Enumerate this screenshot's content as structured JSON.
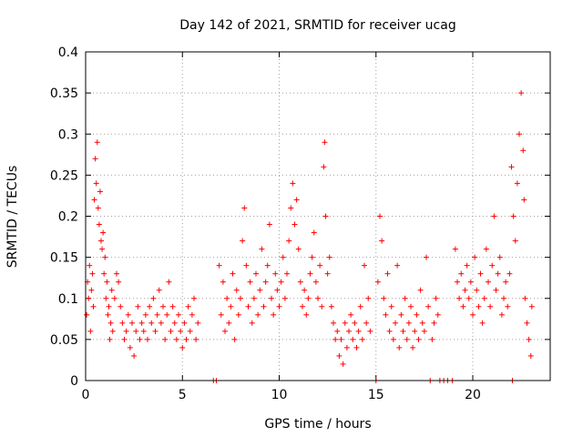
{
  "chart_data": {
    "type": "scatter",
    "title": "Day 142 of 2021, SRMTID for receiver ucag",
    "xlabel": "GPS time / hours",
    "ylabel": "SRMTID / TECUs",
    "xlim": [
      0,
      24
    ],
    "ylim": [
      0,
      0.4
    ],
    "xticks": [
      0,
      5,
      10,
      15,
      20
    ],
    "xtick_labels": [
      "0",
      "5",
      "10",
      "15",
      "20"
    ],
    "yticks": [
      0,
      0.05,
      0.1,
      0.15,
      0.2,
      0.25,
      0.3,
      0.35,
      0.4
    ],
    "ytick_labels": [
      "0",
      "0.05",
      "0.1",
      "0.15",
      "0.2",
      "0.25",
      "0.3",
      "0.35",
      "0.4"
    ],
    "grid": true,
    "marker": "+",
    "color": "#ff0000",
    "series": [
      {
        "name": "SRMTID",
        "points": [
          [
            0.05,
            0.08
          ],
          [
            0.1,
            0.12
          ],
          [
            0.15,
            0.1
          ],
          [
            0.2,
            0.14
          ],
          [
            0.25,
            0.06
          ],
          [
            0.3,
            0.11
          ],
          [
            0.35,
            0.13
          ],
          [
            0.4,
            0.09
          ],
          [
            0.45,
            0.22
          ],
          [
            0.5,
            0.27
          ],
          [
            0.55,
            0.24
          ],
          [
            0.6,
            0.29
          ],
          [
            0.65,
            0.21
          ],
          [
            0.7,
            0.19
          ],
          [
            0.75,
            0.23
          ],
          [
            0.8,
            0.17
          ],
          [
            0.85,
            0.16
          ],
          [
            0.9,
            0.18
          ],
          [
            0.95,
            0.13
          ],
          [
            1.0,
            0.15
          ],
          [
            1.05,
            0.1
          ],
          [
            1.1,
            0.12
          ],
          [
            1.15,
            0.08
          ],
          [
            1.2,
            0.09
          ],
          [
            1.25,
            0.05
          ],
          [
            1.3,
            0.07
          ],
          [
            1.35,
            0.11
          ],
          [
            1.4,
            0.06
          ],
          [
            1.5,
            0.1
          ],
          [
            1.6,
            0.13
          ],
          [
            1.7,
            0.12
          ],
          [
            1.8,
            0.09
          ],
          [
            1.9,
            0.07
          ],
          [
            2.0,
            0.05
          ],
          [
            2.1,
            0.06
          ],
          [
            2.2,
            0.08
          ],
          [
            2.3,
            0.04
          ],
          [
            2.4,
            0.07
          ],
          [
            2.5,
            0.03
          ],
          [
            2.6,
            0.06
          ],
          [
            2.7,
            0.09
          ],
          [
            2.8,
            0.05
          ],
          [
            2.9,
            0.07
          ],
          [
            3.0,
            0.06
          ],
          [
            3.1,
            0.08
          ],
          [
            3.2,
            0.05
          ],
          [
            3.3,
            0.09
          ],
          [
            3.4,
            0.07
          ],
          [
            3.5,
            0.1
          ],
          [
            3.6,
            0.06
          ],
          [
            3.7,
            0.08
          ],
          [
            3.8,
            0.11
          ],
          [
            3.9,
            0.07
          ],
          [
            4.0,
            0.09
          ],
          [
            4.1,
            0.05
          ],
          [
            4.2,
            0.08
          ],
          [
            4.3,
            0.12
          ],
          [
            4.4,
            0.06
          ],
          [
            4.5,
            0.09
          ],
          [
            4.6,
            0.07
          ],
          [
            4.7,
            0.05
          ],
          [
            4.8,
            0.08
          ],
          [
            4.9,
            0.06
          ],
          [
            5.0,
            0.04
          ],
          [
            5.1,
            0.07
          ],
          [
            5.2,
            0.05
          ],
          [
            5.3,
            0.09
          ],
          [
            5.4,
            0.06
          ],
          [
            5.5,
            0.08
          ],
          [
            5.6,
            0.1
          ],
          [
            5.7,
            0.05
          ],
          [
            5.8,
            0.07
          ],
          [
            6.6,
            0.0
          ],
          [
            6.75,
            0.0
          ],
          [
            6.9,
            0.14
          ],
          [
            7.0,
            0.08
          ],
          [
            7.1,
            0.12
          ],
          [
            7.2,
            0.06
          ],
          [
            7.3,
            0.1
          ],
          [
            7.4,
            0.07
          ],
          [
            7.5,
            0.09
          ],
          [
            7.6,
            0.13
          ],
          [
            7.7,
            0.05
          ],
          [
            7.8,
            0.11
          ],
          [
            7.9,
            0.08
          ],
          [
            8.0,
            0.1
          ],
          [
            8.1,
            0.17
          ],
          [
            8.2,
            0.21
          ],
          [
            8.3,
            0.14
          ],
          [
            8.4,
            0.09
          ],
          [
            8.5,
            0.12
          ],
          [
            8.6,
            0.07
          ],
          [
            8.7,
            0.1
          ],
          [
            8.8,
            0.13
          ],
          [
            8.9,
            0.08
          ],
          [
            9.0,
            0.11
          ],
          [
            9.1,
            0.16
          ],
          [
            9.2,
            0.09
          ],
          [
            9.3,
            0.12
          ],
          [
            9.4,
            0.14
          ],
          [
            9.5,
            0.19
          ],
          [
            9.6,
            0.1
          ],
          [
            9.7,
            0.08
          ],
          [
            9.8,
            0.13
          ],
          [
            9.9,
            0.11
          ],
          [
            10.0,
            0.09
          ],
          [
            10.1,
            0.12
          ],
          [
            10.2,
            0.15
          ],
          [
            10.3,
            0.1
          ],
          [
            10.4,
            0.13
          ],
          [
            10.5,
            0.17
          ],
          [
            10.6,
            0.21
          ],
          [
            10.7,
            0.24
          ],
          [
            10.8,
            0.19
          ],
          [
            10.9,
            0.22
          ],
          [
            11.0,
            0.16
          ],
          [
            11.1,
            0.12
          ],
          [
            11.2,
            0.09
          ],
          [
            11.3,
            0.11
          ],
          [
            11.4,
            0.08
          ],
          [
            11.5,
            0.1
          ],
          [
            11.6,
            0.13
          ],
          [
            11.7,
            0.15
          ],
          [
            11.8,
            0.18
          ],
          [
            11.9,
            0.12
          ],
          [
            12.0,
            0.1
          ],
          [
            12.1,
            0.14
          ],
          [
            12.2,
            0.09
          ],
          [
            12.3,
            0.26
          ],
          [
            12.35,
            0.29
          ],
          [
            12.4,
            0.2
          ],
          [
            12.5,
            0.13
          ],
          [
            12.6,
            0.15
          ],
          [
            12.7,
            0.09
          ],
          [
            12.8,
            0.07
          ],
          [
            12.9,
            0.05
          ],
          [
            13.0,
            0.06
          ],
          [
            13.1,
            0.03
          ],
          [
            13.2,
            0.05
          ],
          [
            13.3,
            0.02
          ],
          [
            13.4,
            0.07
          ],
          [
            13.5,
            0.04
          ],
          [
            13.6,
            0.06
          ],
          [
            13.7,
            0.08
          ],
          [
            13.8,
            0.05
          ],
          [
            13.9,
            0.07
          ],
          [
            14.0,
            0.04
          ],
          [
            14.1,
            0.06
          ],
          [
            14.2,
            0.09
          ],
          [
            14.3,
            0.05
          ],
          [
            14.4,
            0.14
          ],
          [
            14.5,
            0.07
          ],
          [
            14.6,
            0.1
          ],
          [
            14.7,
            0.06
          ],
          [
            15.0,
            0.0
          ],
          [
            15.1,
            0.12
          ],
          [
            15.2,
            0.2
          ],
          [
            15.3,
            0.17
          ],
          [
            15.4,
            0.1
          ],
          [
            15.5,
            0.08
          ],
          [
            15.6,
            0.13
          ],
          [
            15.7,
            0.06
          ],
          [
            15.8,
            0.09
          ],
          [
            15.9,
            0.05
          ],
          [
            16.0,
            0.07
          ],
          [
            16.1,
            0.14
          ],
          [
            16.2,
            0.04
          ],
          [
            16.3,
            0.08
          ],
          [
            16.4,
            0.06
          ],
          [
            16.5,
            0.1
          ],
          [
            16.6,
            0.05
          ],
          [
            16.7,
            0.07
          ],
          [
            16.8,
            0.09
          ],
          [
            16.9,
            0.04
          ],
          [
            17.0,
            0.06
          ],
          [
            17.1,
            0.08
          ],
          [
            17.2,
            0.05
          ],
          [
            17.3,
            0.11
          ],
          [
            17.4,
            0.07
          ],
          [
            17.5,
            0.06
          ],
          [
            17.6,
            0.15
          ],
          [
            17.7,
            0.09
          ],
          [
            17.8,
            0.0
          ],
          [
            17.9,
            0.05
          ],
          [
            18.0,
            0.07
          ],
          [
            18.1,
            0.1
          ],
          [
            18.2,
            0.08
          ],
          [
            18.3,
            0.0
          ],
          [
            18.5,
            0.0
          ],
          [
            18.7,
            0.0
          ],
          [
            18.95,
            0.0
          ],
          [
            19.1,
            0.16
          ],
          [
            19.2,
            0.12
          ],
          [
            19.3,
            0.1
          ],
          [
            19.4,
            0.13
          ],
          [
            19.5,
            0.09
          ],
          [
            19.6,
            0.11
          ],
          [
            19.7,
            0.14
          ],
          [
            19.8,
            0.1
          ],
          [
            19.9,
            0.12
          ],
          [
            20.0,
            0.08
          ],
          [
            20.1,
            0.15
          ],
          [
            20.2,
            0.11
          ],
          [
            20.3,
            0.09
          ],
          [
            20.4,
            0.13
          ],
          [
            20.5,
            0.07
          ],
          [
            20.6,
            0.1
          ],
          [
            20.7,
            0.16
          ],
          [
            20.8,
            0.12
          ],
          [
            20.9,
            0.09
          ],
          [
            21.0,
            0.14
          ],
          [
            21.1,
            0.2
          ],
          [
            21.2,
            0.11
          ],
          [
            21.3,
            0.13
          ],
          [
            21.4,
            0.15
          ],
          [
            21.5,
            0.08
          ],
          [
            21.6,
            0.1
          ],
          [
            21.7,
            0.12
          ],
          [
            21.8,
            0.09
          ],
          [
            21.9,
            0.13
          ],
          [
            22.0,
            0.26
          ],
          [
            22.05,
            0.0
          ],
          [
            22.1,
            0.2
          ],
          [
            22.2,
            0.17
          ],
          [
            22.3,
            0.24
          ],
          [
            22.4,
            0.3
          ],
          [
            22.5,
            0.35
          ],
          [
            22.6,
            0.28
          ],
          [
            22.65,
            0.22
          ],
          [
            22.7,
            0.1
          ],
          [
            22.8,
            0.07
          ],
          [
            22.9,
            0.05
          ],
          [
            23.0,
            0.03
          ],
          [
            23.05,
            0.09
          ]
        ]
      }
    ]
  }
}
